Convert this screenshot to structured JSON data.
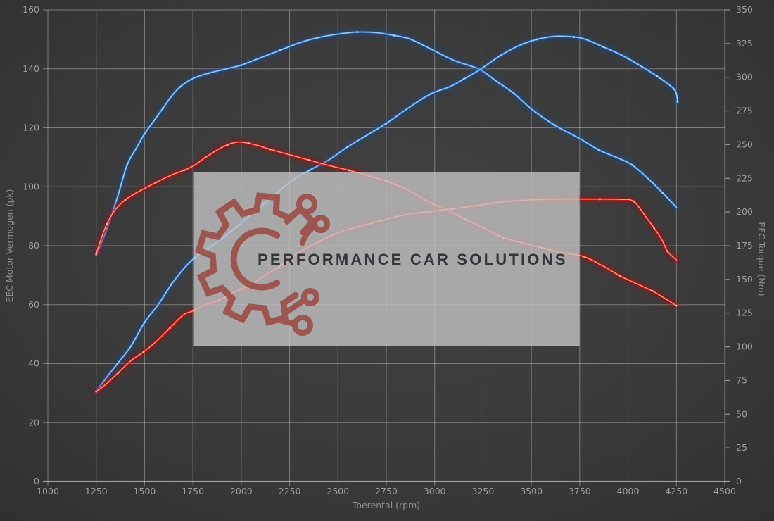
{
  "chart_data": {
    "type": "line",
    "title": "",
    "xlabel": "Toerental (rpm)",
    "ylabel_left": "EEC Motor Vermogen (pk)",
    "ylabel_right": "EEC Torque (Nm)",
    "x_range": [
      1000,
      4500
    ],
    "x_ticks": [
      1000,
      1250,
      1500,
      1750,
      2000,
      2250,
      2500,
      2750,
      3000,
      3250,
      3500,
      3750,
      4000,
      4250,
      4500
    ],
    "y_left_range": [
      0,
      160
    ],
    "y_left_ticks": [
      0,
      20,
      40,
      60,
      80,
      100,
      120,
      140,
      160
    ],
    "y_right_range": [
      0,
      350
    ],
    "y_right_ticks": [
      0,
      25,
      50,
      75,
      100,
      125,
      150,
      175,
      200,
      225,
      250,
      275,
      300,
      325,
      350
    ],
    "grid": true,
    "legend": "none",
    "series": [
      {
        "id": "torque-tuned-blue",
        "axis": "right",
        "unit": "Nm",
        "color": "#4a8fd4",
        "glow": "#1d4e8c",
        "core": "#b9d7f4",
        "points": [
          [
            1250,
            168
          ],
          [
            1285,
            180
          ],
          [
            1320,
            194
          ],
          [
            1360,
            211
          ],
          [
            1410,
            235
          ],
          [
            1460,
            248
          ],
          [
            1500,
            258
          ],
          [
            1550,
            268
          ],
          [
            1595,
            277
          ],
          [
            1640,
            286
          ],
          [
            1685,
            293
          ],
          [
            1750,
            299
          ],
          [
            1830,
            303
          ],
          [
            1930,
            306.5
          ],
          [
            2000,
            309
          ],
          [
            2100,
            314.5
          ],
          [
            2200,
            320
          ],
          [
            2300,
            325.5
          ],
          [
            2400,
            329.5
          ],
          [
            2500,
            332
          ],
          [
            2600,
            333.5
          ],
          [
            2700,
            333
          ],
          [
            2790,
            331
          ],
          [
            2870,
            328.5
          ],
          [
            2980,
            321
          ],
          [
            3100,
            312.5
          ],
          [
            3230,
            306
          ],
          [
            3320,
            297
          ],
          [
            3410,
            288
          ],
          [
            3500,
            276.5
          ],
          [
            3620,
            264.5
          ],
          [
            3750,
            254.5
          ],
          [
            3850,
            246
          ],
          [
            3950,
            240
          ],
          [
            4020,
            235
          ],
          [
            4110,
            224
          ],
          [
            4180,
            214
          ],
          [
            4250,
            203.5
          ]
        ]
      },
      {
        "id": "power-tuned-blue",
        "axis": "left",
        "unit": "pk",
        "color": "#4a8fd4",
        "glow": "#1d4e8c",
        "core": "#b9d7f4",
        "points": [
          [
            1250,
            30.5
          ],
          [
            1300,
            35
          ],
          [
            1360,
            40
          ],
          [
            1430,
            46
          ],
          [
            1500,
            54
          ],
          [
            1570,
            60
          ],
          [
            1640,
            67
          ],
          [
            1700,
            72
          ],
          [
            1760,
            76
          ],
          [
            1850,
            80
          ],
          [
            1950,
            85
          ],
          [
            2050,
            90.5
          ],
          [
            2150,
            96
          ],
          [
            2260,
            102
          ],
          [
            2350,
            105.5
          ],
          [
            2450,
            109
          ],
          [
            2550,
            113.5
          ],
          [
            2650,
            117.5
          ],
          [
            2750,
            121.5
          ],
          [
            2870,
            127
          ],
          [
            2980,
            131.5
          ],
          [
            3080,
            134
          ],
          [
            3150,
            136.5
          ],
          [
            3240,
            140
          ],
          [
            3340,
            144.5
          ],
          [
            3440,
            148
          ],
          [
            3530,
            150
          ],
          [
            3620,
            151
          ],
          [
            3720,
            150.8
          ],
          [
            3780,
            150
          ],
          [
            3870,
            147.5
          ],
          [
            3940,
            145.5
          ],
          [
            4000,
            143.5
          ],
          [
            4090,
            140
          ],
          [
            4150,
            137.5
          ],
          [
            4200,
            135.2
          ],
          [
            4240,
            133
          ],
          [
            4252,
            131
          ],
          [
            4256,
            128.8
          ]
        ]
      },
      {
        "id": "torque-original-red",
        "axis": "right",
        "unit": "Nm",
        "color": "#e0271d",
        "glow": "#a51008",
        "core": "#ffc0b4",
        "points": [
          [
            1250,
            169
          ],
          [
            1275,
            180
          ],
          [
            1305,
            191
          ],
          [
            1345,
            201
          ],
          [
            1400,
            209
          ],
          [
            1480,
            216
          ],
          [
            1560,
            222
          ],
          [
            1640,
            227.5
          ],
          [
            1705,
            231
          ],
          [
            1755,
            234.5
          ],
          [
            1815,
            240.5
          ],
          [
            1875,
            246
          ],
          [
            1930,
            250
          ],
          [
            1985,
            252
          ],
          [
            2040,
            251
          ],
          [
            2095,
            249
          ],
          [
            2150,
            246.5
          ],
          [
            2250,
            242.5
          ],
          [
            2350,
            238.5
          ],
          [
            2455,
            234.5
          ],
          [
            2555,
            231
          ],
          [
            2655,
            227
          ],
          [
            2760,
            222.5
          ],
          [
            2860,
            216.5
          ],
          [
            2955,
            208.5
          ],
          [
            3070,
            201
          ],
          [
            3160,
            194.5
          ],
          [
            3255,
            188
          ],
          [
            3355,
            181
          ],
          [
            3455,
            177
          ],
          [
            3555,
            173.5
          ],
          [
            3655,
            170
          ],
          [
            3770,
            167
          ],
          [
            3870,
            160
          ],
          [
            3960,
            152.5
          ],
          [
            4050,
            146.5
          ],
          [
            4125,
            141.5
          ],
          [
            4190,
            136
          ],
          [
            4250,
            130.5
          ]
        ]
      },
      {
        "id": "power-original-red",
        "axis": "left",
        "unit": "pk",
        "color": "#e0271d",
        "glow": "#a51008",
        "core": "#ffc0b4",
        "points": [
          [
            1250,
            30.5
          ],
          [
            1300,
            33
          ],
          [
            1365,
            37
          ],
          [
            1430,
            41
          ],
          [
            1495,
            44
          ],
          [
            1560,
            47.5
          ],
          [
            1630,
            52
          ],
          [
            1700,
            56.5
          ],
          [
            1755,
            58
          ],
          [
            1815,
            60
          ],
          [
            1885,
            61.5
          ],
          [
            1955,
            64
          ],
          [
            2040,
            66.5
          ],
          [
            2125,
            70
          ],
          [
            2210,
            73.5
          ],
          [
            2305,
            78
          ],
          [
            2405,
            81.5
          ],
          [
            2505,
            84.5
          ],
          [
            2610,
            86.5
          ],
          [
            2725,
            88.5
          ],
          [
            2845,
            90.5
          ],
          [
            2965,
            91.5
          ],
          [
            3090,
            92.5
          ],
          [
            3205,
            93.5
          ],
          [
            3305,
            94.5
          ],
          [
            3405,
            95.2
          ],
          [
            3555,
            95.7
          ],
          [
            3705,
            95.8
          ],
          [
            3855,
            95.8
          ],
          [
            3965,
            95.7
          ],
          [
            4030,
            95
          ],
          [
            4095,
            89.5
          ],
          [
            4135,
            86
          ],
          [
            4175,
            82
          ],
          [
            4205,
            78
          ],
          [
            4250,
            75.2
          ]
        ]
      }
    ]
  },
  "watermark": {
    "text": "PERFORMANCE CAR SOLUTIONS",
    "box_color": "#c3c3c3",
    "box_opacity": 0.8,
    "logo_color": "#9b453c",
    "text_color": "#33373a"
  },
  "colors": {
    "background_center": "#424242",
    "background_mid": "#3a3a3a",
    "background_edge": "#2e2e2e",
    "grid": "rgba(235,235,235,0.38)",
    "axis_line": "rgba(235,235,235,0.5)",
    "tick_label": "#9d9d9d",
    "axis_title": "#8f8f8f"
  }
}
